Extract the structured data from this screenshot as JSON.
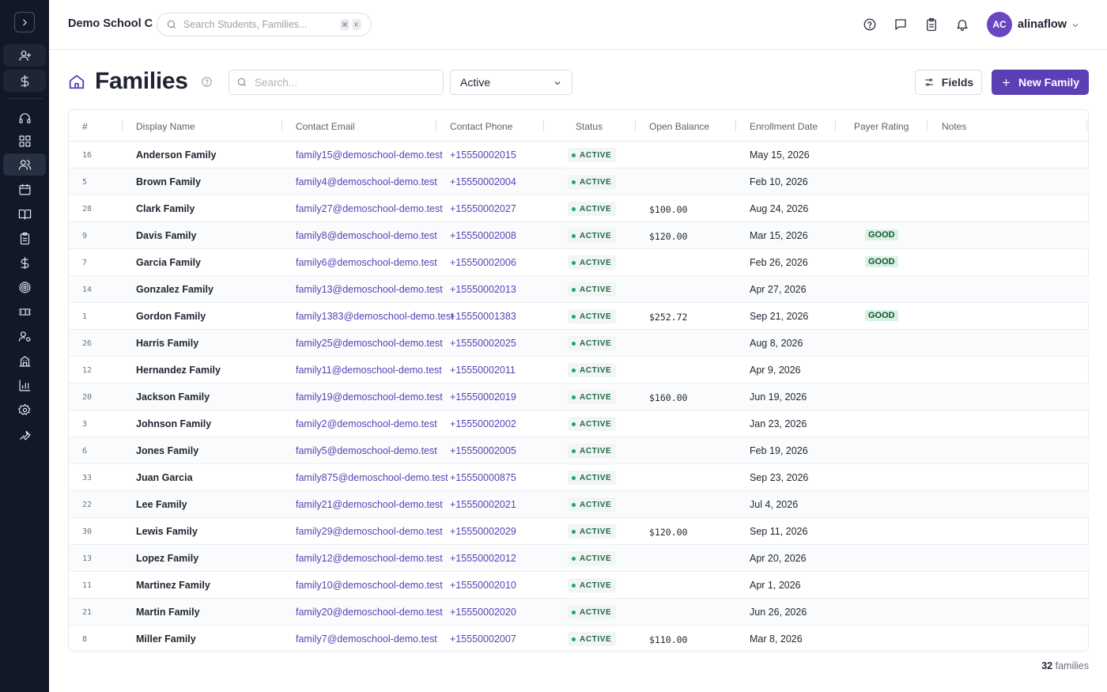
{
  "sidebar": {
    "icons": [
      "chevron-right-icon",
      "add-user-icon",
      "dollar-icon",
      "headset-icon",
      "dashboard-icon",
      "users-icon",
      "calendar-icon",
      "book-icon",
      "clipboard-icon",
      "billing-icon",
      "target-icon",
      "ticket-icon",
      "user-settings-icon",
      "building-icon",
      "chart-icon",
      "gear-icon",
      "wrench-icon"
    ]
  },
  "header": {
    "school": "Demo School C",
    "search_placeholder": "Search Students, Families...",
    "kbd_cmd": "⌘",
    "kbd_k": "K",
    "user_initials": "AC",
    "username": "alinaflow"
  },
  "page": {
    "title": "Families",
    "search_placeholder": "Search...",
    "status_filter": "Active",
    "fields_label": "Fields",
    "new_label": "New Family"
  },
  "table": {
    "columns": [
      "#",
      "Display Name",
      "Contact Email",
      "Contact Phone",
      "Status",
      "Open Balance",
      "Enrollment Date",
      "Payer Rating",
      "Notes"
    ],
    "rows": [
      {
        "num": "16",
        "name": "Anderson Family",
        "email": "family15@demoschool-demo.test",
        "phone": "+15550002015",
        "status": "ACTIVE",
        "balance": "",
        "date": "May 15, 2026",
        "rating": ""
      },
      {
        "num": "5",
        "name": "Brown Family",
        "email": "family4@demoschool-demo.test",
        "phone": "+15550002004",
        "status": "ACTIVE",
        "balance": "",
        "date": "Feb 10, 2026",
        "rating": ""
      },
      {
        "num": "28",
        "name": "Clark Family",
        "email": "family27@demoschool-demo.test",
        "phone": "+15550002027",
        "status": "ACTIVE",
        "balance": "$100.00",
        "date": "Aug 24, 2026",
        "rating": ""
      },
      {
        "num": "9",
        "name": "Davis Family",
        "email": "family8@demoschool-demo.test",
        "phone": "+15550002008",
        "status": "ACTIVE",
        "balance": "$120.00",
        "date": "Mar 15, 2026",
        "rating": "GOOD"
      },
      {
        "num": "7",
        "name": "Garcia Family",
        "email": "family6@demoschool-demo.test",
        "phone": "+15550002006",
        "status": "ACTIVE",
        "balance": "",
        "date": "Feb 26, 2026",
        "rating": "GOOD"
      },
      {
        "num": "14",
        "name": "Gonzalez Family",
        "email": "family13@demoschool-demo.test",
        "phone": "+15550002013",
        "status": "ACTIVE",
        "balance": "",
        "date": "Apr 27, 2026",
        "rating": ""
      },
      {
        "num": "1",
        "name": "Gordon Family",
        "email": "family1383@demoschool-demo.test",
        "phone": "+15550001383",
        "status": "ACTIVE",
        "balance": "$252.72",
        "date": "Sep 21, 2026",
        "rating": "GOOD"
      },
      {
        "num": "26",
        "name": "Harris Family",
        "email": "family25@demoschool-demo.test",
        "phone": "+15550002025",
        "status": "ACTIVE",
        "balance": "",
        "date": "Aug 8, 2026",
        "rating": ""
      },
      {
        "num": "12",
        "name": "Hernandez Family",
        "email": "family11@demoschool-demo.test",
        "phone": "+15550002011",
        "status": "ACTIVE",
        "balance": "",
        "date": "Apr 9, 2026",
        "rating": ""
      },
      {
        "num": "20",
        "name": "Jackson Family",
        "email": "family19@demoschool-demo.test",
        "phone": "+15550002019",
        "status": "ACTIVE",
        "balance": "$160.00",
        "date": "Jun 19, 2026",
        "rating": ""
      },
      {
        "num": "3",
        "name": "Johnson Family",
        "email": "family2@demoschool-demo.test",
        "phone": "+15550002002",
        "status": "ACTIVE",
        "balance": "",
        "date": "Jan 23, 2026",
        "rating": ""
      },
      {
        "num": "6",
        "name": "Jones Family",
        "email": "family5@demoschool-demo.test",
        "phone": "+15550002005",
        "status": "ACTIVE",
        "balance": "",
        "date": "Feb 19, 2026",
        "rating": ""
      },
      {
        "num": "33",
        "name": "Juan Garcia",
        "email": "family875@demoschool-demo.test",
        "phone": "+15550000875",
        "status": "ACTIVE",
        "balance": "",
        "date": "Sep 23, 2026",
        "rating": ""
      },
      {
        "num": "22",
        "name": "Lee Family",
        "email": "family21@demoschool-demo.test",
        "phone": "+15550002021",
        "status": "ACTIVE",
        "balance": "",
        "date": "Jul 4, 2026",
        "rating": ""
      },
      {
        "num": "30",
        "name": "Lewis Family",
        "email": "family29@demoschool-demo.test",
        "phone": "+15550002029",
        "status": "ACTIVE",
        "balance": "$120.00",
        "date": "Sep 11, 2026",
        "rating": ""
      },
      {
        "num": "13",
        "name": "Lopez Family",
        "email": "family12@demoschool-demo.test",
        "phone": "+15550002012",
        "status": "ACTIVE",
        "balance": "",
        "date": "Apr 20, 2026",
        "rating": ""
      },
      {
        "num": "11",
        "name": "Martinez Family",
        "email": "family10@demoschool-demo.test",
        "phone": "+15550002010",
        "status": "ACTIVE",
        "balance": "",
        "date": "Apr 1, 2026",
        "rating": ""
      },
      {
        "num": "21",
        "name": "Martin Family",
        "email": "family20@demoschool-demo.test",
        "phone": "+15550002020",
        "status": "ACTIVE",
        "balance": "",
        "date": "Jun 26, 2026",
        "rating": ""
      },
      {
        "num": "8",
        "name": "Miller Family",
        "email": "family7@demoschool-demo.test",
        "phone": "+15550002007",
        "status": "ACTIVE",
        "balance": "$110.00",
        "date": "Mar 8, 2026",
        "rating": ""
      }
    ]
  },
  "footer": {
    "count": "32",
    "count_label": "families"
  },
  "colors": {
    "brand": "#5b3fb5",
    "sidebar": "#111827",
    "status_dot": "#22a566",
    "rating_bg": "#d9f2e5"
  }
}
